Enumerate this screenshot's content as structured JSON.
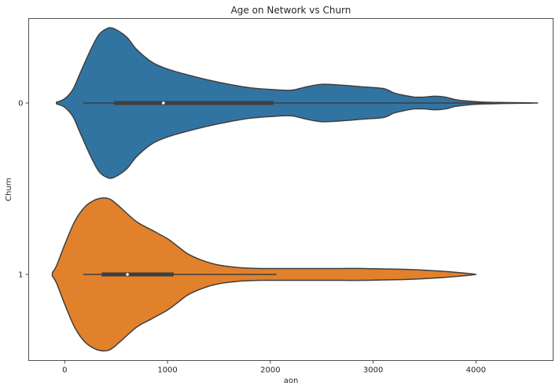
{
  "chart_data": {
    "type": "violin",
    "title": "Age on Network vs Churn",
    "xlabel": "aon",
    "ylabel": "Churn",
    "xlim": [
      -350,
      4750
    ],
    "x_ticks": [
      0,
      1000,
      2000,
      3000,
      4000
    ],
    "grid": false,
    "legend": "none",
    "series": [
      {
        "name": "0",
        "color": "#3274a1",
        "min": 180,
        "q1": 480,
        "median": 960,
        "q3": 2030,
        "max": 4550,
        "density": {
          "x": [
            -80,
            0,
            80,
            150,
            250,
            330,
            400,
            470,
            600,
            700,
            850,
            1000,
            1200,
            1400,
            1600,
            1800,
            2000,
            2200,
            2350,
            2500,
            2700,
            2900,
            3100,
            3200,
            3300,
            3400,
            3500,
            3600,
            3700,
            3800,
            3900,
            4050,
            4250,
            4600
          ],
          "w": [
            0.01,
            0.05,
            0.16,
            0.35,
            0.62,
            0.8,
            0.87,
            0.88,
            0.78,
            0.63,
            0.48,
            0.4,
            0.33,
            0.27,
            0.22,
            0.18,
            0.16,
            0.15,
            0.19,
            0.22,
            0.21,
            0.19,
            0.17,
            0.12,
            0.09,
            0.07,
            0.07,
            0.08,
            0.07,
            0.04,
            0.025,
            0.012,
            0.006,
            0.0
          ]
        }
      },
      {
        "name": "1",
        "color": "#e1812c",
        "min": 180,
        "q1": 360,
        "median": 610,
        "q3": 1060,
        "max": 2060,
        "density": {
          "x": [
            -120,
            -80,
            0,
            100,
            200,
            300,
            380,
            450,
            550,
            700,
            850,
            1000,
            1100,
            1200,
            1350,
            1500,
            1700,
            1900,
            2100,
            2300,
            2500,
            2700,
            2900,
            3100,
            3300,
            3500,
            3700,
            3850,
            3950,
            4000
          ],
          "w": [
            0.02,
            0.1,
            0.35,
            0.63,
            0.8,
            0.88,
            0.9,
            0.88,
            0.78,
            0.62,
            0.52,
            0.42,
            0.33,
            0.24,
            0.16,
            0.11,
            0.08,
            0.07,
            0.07,
            0.07,
            0.07,
            0.07,
            0.07,
            0.065,
            0.06,
            0.05,
            0.035,
            0.02,
            0.008,
            0.0
          ]
        }
      }
    ]
  }
}
